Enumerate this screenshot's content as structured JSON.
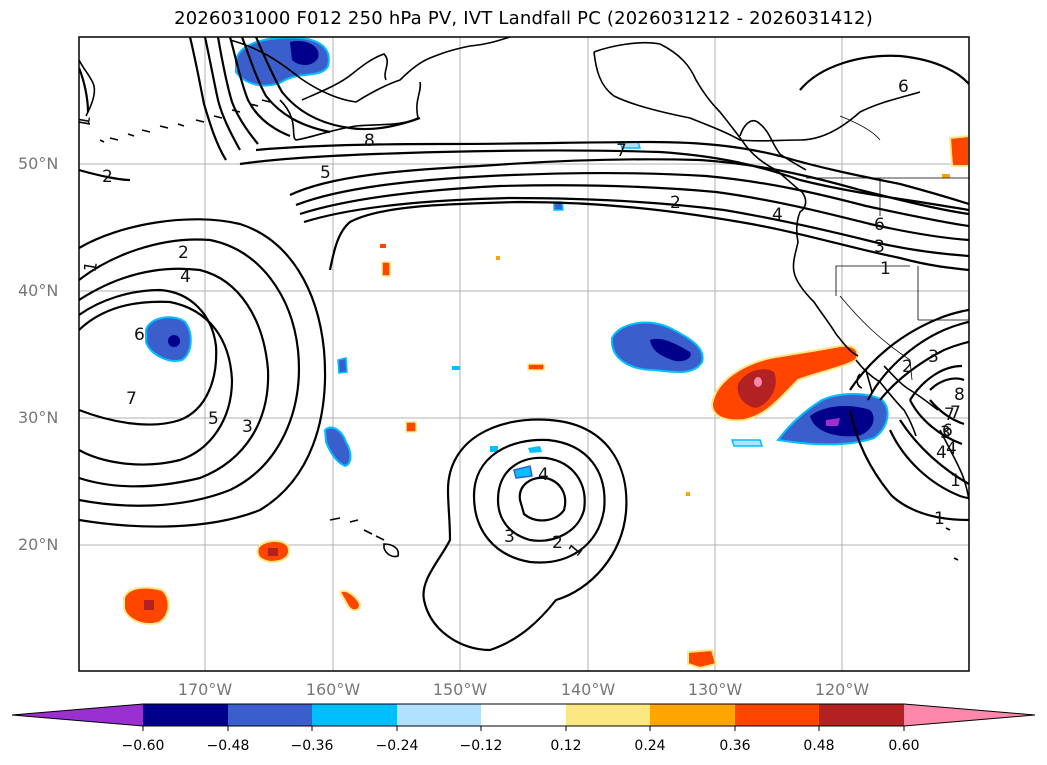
{
  "title": "2026031000 F012 250 hPa PV, IVT Landfall PC (2026031212 - 2026031412)",
  "lat_labels": [
    "50°N",
    "40°N",
    "30°N",
    "20°N"
  ],
  "lon_labels": [
    "170°W",
    "160°W",
    "150°W",
    "140°W",
    "130°W",
    "120°W"
  ],
  "colorbar": {
    "ticks": [
      "−0.60",
      "−0.48",
      "−0.36",
      "−0.24",
      "−0.12",
      "0.12",
      "0.24",
      "0.36",
      "0.48",
      "0.60"
    ],
    "colors": [
      "#9b30d0",
      "#00008b",
      "#3a5fcd",
      "#00bfff",
      "#b0e2ff",
      "#ffffff",
      "#fce883",
      "#ffa500",
      "#ff4500",
      "#b22222",
      "#ff88aa"
    ]
  },
  "contour_labels": [
    "8",
    "5",
    "2",
    "2",
    "1",
    "4",
    "6",
    "1",
    "7",
    "5",
    "3",
    "2",
    "4",
    "6",
    "3",
    "1",
    "7",
    "6",
    "4",
    "3",
    "2",
    "1",
    "4",
    "3",
    "2",
    "1",
    "3",
    "7",
    "6",
    "4",
    "1",
    "8",
    "7"
  ]
}
